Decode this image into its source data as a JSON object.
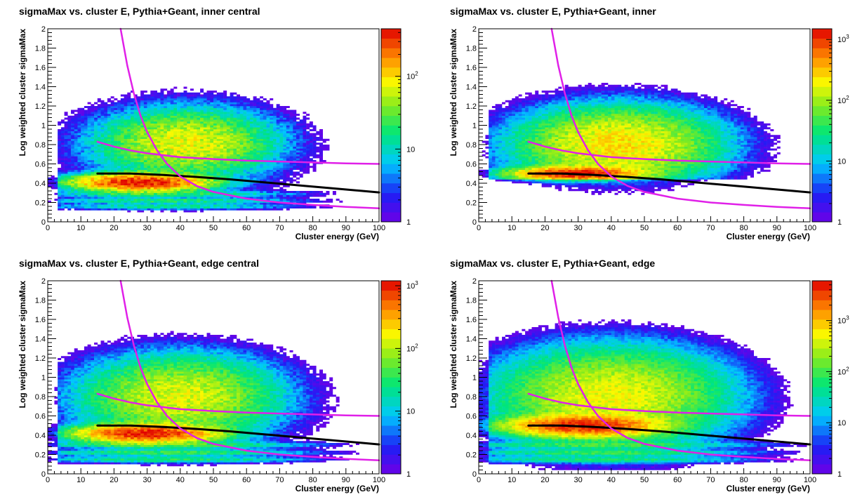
{
  "chart_data": [
    {
      "type": "heatmap",
      "title": "sigmaMax vs. cluster E, Pythia+Geant, inner central",
      "xlabel": "Cluster energy (GeV)",
      "ylabel": "Log weighted cluster sigmaMax",
      "xlim": [
        0,
        100
      ],
      "ylim": [
        0,
        2
      ],
      "x_ticks": [
        "0",
        "10",
        "20",
        "30",
        "40",
        "50",
        "60",
        "70",
        "80",
        "90",
        "100"
      ],
      "y_ticks": [
        "0",
        "0.2",
        "0.4",
        "0.6",
        "0.8",
        "1",
        "1.2",
        "1.4",
        "1.6",
        "1.8",
        "2"
      ],
      "z_scale": "log",
      "z_range": [
        1,
        450
      ],
      "z_ticks": [
        "1",
        "10",
        "10^2"
      ],
      "bins": [
        100,
        100
      ],
      "structure": {
        "upper_blob": {
          "x": 42,
          "y": 0.82,
          "sx": 13,
          "sy": 0.17,
          "peak": 75
        },
        "lower_band": {
          "x": 28,
          "y": 0.41,
          "sx": 10,
          "sy": 0.045,
          "peak": 400
        },
        "bands": [
          {
            "y": 0.29,
            "peak": 18
          },
          {
            "y": 0.22,
            "peak": 18
          },
          {
            "y": 0.16,
            "peak": 14
          }
        ],
        "floor_y": 0.05
      },
      "curves": [
        {
          "name": "",
          "color": "#000000",
          "width": 3,
          "x": [
            15,
            25,
            35,
            45,
            55,
            65,
            75,
            85,
            95,
            100
          ],
          "y": [
            0.5,
            0.5,
            0.485,
            0.465,
            0.44,
            0.41,
            0.38,
            0.35,
            0.32,
            0.305
          ]
        },
        {
          "name": "",
          "color": "#e020e8",
          "width": 2.5,
          "x": [
            22,
            24,
            26,
            28,
            30,
            33,
            36,
            40,
            45,
            50,
            60,
            70,
            80,
            90,
            100
          ],
          "y": [
            2.0,
            1.62,
            1.33,
            1.1,
            0.93,
            0.74,
            0.6,
            0.47,
            0.37,
            0.31,
            0.24,
            0.2,
            0.175,
            0.155,
            0.14
          ]
        },
        {
          "name": "",
          "color": "#e020e8",
          "width": 2.5,
          "x": [
            15,
            20,
            25,
            30,
            35,
            40,
            50,
            60,
            70,
            80,
            90,
            100
          ],
          "y": [
            0.83,
            0.78,
            0.74,
            0.71,
            0.69,
            0.67,
            0.65,
            0.635,
            0.625,
            0.615,
            0.605,
            0.6
          ]
        }
      ]
    },
    {
      "type": "heatmap",
      "title": "sigmaMax vs. cluster E, Pythia+Geant, inner",
      "xlabel": "Cluster energy (GeV)",
      "ylabel": "Log weighted cluster sigmaMax",
      "xlim": [
        0,
        100
      ],
      "ylim": [
        0,
        2
      ],
      "x_ticks": [
        "0",
        "10",
        "20",
        "30",
        "40",
        "50",
        "60",
        "70",
        "80",
        "90",
        "100"
      ],
      "y_ticks": [
        "0",
        "0.2",
        "0.4",
        "0.6",
        "0.8",
        "1",
        "1.2",
        "1.4",
        "1.6",
        "1.8",
        "2"
      ],
      "z_scale": "log",
      "z_range": [
        1,
        1500
      ],
      "z_ticks": [
        "1",
        "10",
        "10^2",
        "10^3"
      ],
      "bins": [
        100,
        100
      ],
      "structure": {
        "upper_blob": {
          "x": 42,
          "y": 0.8,
          "sx": 14,
          "sy": 0.18,
          "peak": 250
        },
        "lower_band": {
          "x": 30,
          "y": 0.5,
          "sx": 9,
          "sy": 0.035,
          "peak": 1300
        },
        "bands": [],
        "floor_y": 0.44
      },
      "curves": [
        {
          "name": "",
          "color": "#000000",
          "width": 3,
          "x": [
            15,
            25,
            35,
            45,
            55,
            65,
            75,
            85,
            95,
            100
          ],
          "y": [
            0.5,
            0.5,
            0.485,
            0.465,
            0.44,
            0.41,
            0.38,
            0.35,
            0.32,
            0.305
          ]
        },
        {
          "name": "",
          "color": "#e020e8",
          "width": 2.5,
          "x": [
            22,
            24,
            26,
            28,
            30,
            33,
            36,
            40,
            45,
            50,
            60,
            70,
            80,
            90,
            100
          ],
          "y": [
            2.0,
            1.62,
            1.33,
            1.1,
            0.93,
            0.74,
            0.6,
            0.47,
            0.37,
            0.31,
            0.24,
            0.2,
            0.175,
            0.155,
            0.14
          ]
        },
        {
          "name": "",
          "color": "#e020e8",
          "width": 2.5,
          "x": [
            15,
            20,
            25,
            30,
            35,
            40,
            50,
            60,
            70,
            80,
            90,
            100
          ],
          "y": [
            0.83,
            0.78,
            0.74,
            0.71,
            0.69,
            0.67,
            0.65,
            0.635,
            0.625,
            0.615,
            0.605,
            0.6
          ]
        }
      ]
    },
    {
      "type": "heatmap",
      "title": "sigmaMax vs. cluster E, Pythia+Geant, edge central",
      "xlabel": "Cluster energy (GeV)",
      "ylabel": "Log weighted cluster sigmaMax",
      "xlim": [
        0,
        100
      ],
      "ylim": [
        0,
        2
      ],
      "x_ticks": [
        "0",
        "10",
        "20",
        "30",
        "40",
        "50",
        "60",
        "70",
        "80",
        "90",
        "100"
      ],
      "y_ticks": [
        "0",
        "0.2",
        "0.4",
        "0.6",
        "0.8",
        "1",
        "1.2",
        "1.4",
        "1.6",
        "1.8",
        "2"
      ],
      "z_scale": "log",
      "z_range": [
        1,
        1200
      ],
      "z_ticks": [
        "1",
        "10",
        "10^2",
        "10^3"
      ],
      "bins": [
        100,
        100
      ],
      "structure": {
        "upper_blob": {
          "x": 40,
          "y": 0.8,
          "sx": 14,
          "sy": 0.2,
          "peak": 140
        },
        "lower_band": {
          "x": 30,
          "y": 0.42,
          "sx": 10,
          "sy": 0.045,
          "peak": 1000
        },
        "bands": [
          {
            "y": 0.3,
            "peak": 40
          },
          {
            "y": 0.22,
            "peak": 40
          },
          {
            "y": 0.15,
            "peak": 30
          }
        ],
        "floor_y": 0.05
      },
      "curves": [
        {
          "name": "",
          "color": "#000000",
          "width": 3,
          "x": [
            15,
            25,
            35,
            45,
            55,
            65,
            75,
            85,
            95,
            100
          ],
          "y": [
            0.5,
            0.5,
            0.485,
            0.465,
            0.44,
            0.41,
            0.38,
            0.35,
            0.32,
            0.305
          ]
        },
        {
          "name": "",
          "color": "#e020e8",
          "width": 2.5,
          "x": [
            22,
            24,
            26,
            28,
            30,
            33,
            36,
            40,
            45,
            50,
            60,
            70,
            80,
            90,
            100
          ],
          "y": [
            2.0,
            1.62,
            1.33,
            1.1,
            0.93,
            0.74,
            0.6,
            0.47,
            0.37,
            0.31,
            0.24,
            0.2,
            0.175,
            0.155,
            0.14
          ]
        },
        {
          "name": "",
          "color": "#e020e8",
          "width": 2.5,
          "x": [
            15,
            20,
            25,
            30,
            35,
            40,
            50,
            60,
            70,
            80,
            90,
            100
          ],
          "y": [
            0.83,
            0.78,
            0.74,
            0.71,
            0.69,
            0.67,
            0.65,
            0.635,
            0.625,
            0.615,
            0.605,
            0.6
          ]
        }
      ]
    },
    {
      "type": "heatmap",
      "title": "sigmaMax vs. cluster E, Pythia+Geant, edge",
      "xlabel": "Cluster energy (GeV)",
      "ylabel": "Log weighted cluster sigmaMax",
      "xlim": [
        0,
        100
      ],
      "ylim": [
        0,
        2
      ],
      "x_ticks": [
        "0",
        "10",
        "20",
        "30",
        "40",
        "50",
        "60",
        "70",
        "80",
        "90",
        "100"
      ],
      "y_ticks": [
        "0",
        "0.2",
        "0.4",
        "0.6",
        "0.8",
        "1",
        "1.2",
        "1.4",
        "1.6",
        "1.8",
        "2"
      ],
      "z_scale": "log",
      "z_range": [
        1,
        6000
      ],
      "z_ticks": [
        "1",
        "10",
        "10^2",
        "10^3"
      ],
      "bins": [
        100,
        100
      ],
      "structure": {
        "upper_blob": {
          "x": 40,
          "y": 0.8,
          "sx": 15,
          "sy": 0.22,
          "peak": 500
        },
        "lower_band": {
          "x": 32,
          "y": 0.5,
          "sx": 10,
          "sy": 0.05,
          "peak": 4500
        },
        "bands": [
          {
            "y": 0.3,
            "peak": 80
          },
          {
            "y": 0.22,
            "peak": 80
          },
          {
            "y": 0.15,
            "peak": 60
          }
        ],
        "floor_y": 0.05
      },
      "curves": [
        {
          "name": "",
          "color": "#000000",
          "width": 3,
          "x": [
            15,
            25,
            35,
            45,
            55,
            65,
            75,
            85,
            95,
            100
          ],
          "y": [
            0.5,
            0.5,
            0.485,
            0.465,
            0.44,
            0.41,
            0.38,
            0.35,
            0.32,
            0.305
          ]
        },
        {
          "name": "",
          "color": "#e020e8",
          "width": 2.5,
          "x": [
            22,
            24,
            26,
            28,
            30,
            33,
            36,
            40,
            45,
            50,
            60,
            70,
            80,
            90,
            100
          ],
          "y": [
            2.0,
            1.62,
            1.33,
            1.1,
            0.93,
            0.74,
            0.6,
            0.47,
            0.37,
            0.31,
            0.24,
            0.2,
            0.175,
            0.155,
            0.14
          ]
        },
        {
          "name": "",
          "color": "#e020e8",
          "width": 2.5,
          "x": [
            15,
            20,
            25,
            30,
            35,
            40,
            50,
            60,
            70,
            80,
            90,
            100
          ],
          "y": [
            0.83,
            0.78,
            0.74,
            0.71,
            0.69,
            0.67,
            0.65,
            0.635,
            0.625,
            0.615,
            0.605,
            0.6
          ]
        }
      ]
    }
  ]
}
